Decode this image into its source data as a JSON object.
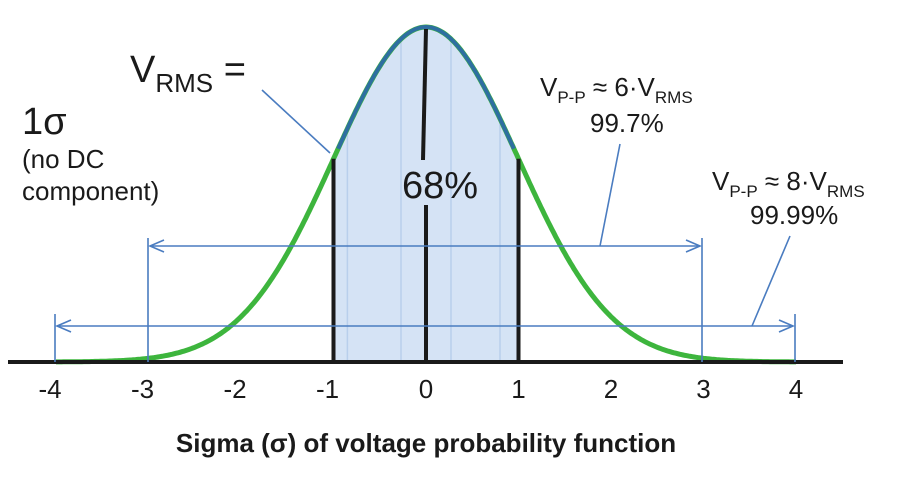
{
  "chart_data": {
    "type": "area",
    "description_curve": "normal",
    "x_ticks": [
      "-4",
      "-3",
      "-2",
      "-1",
      "0",
      "1",
      "2",
      "3",
      "4"
    ],
    "xlim": [
      -4,
      4
    ],
    "shaded_region": [
      -1,
      1
    ],
    "shaded_percent_label": "68%",
    "xlabel": "Sigma (σ) of voltage probability function",
    "colors": {
      "curve": "#3db53d",
      "center_curve": "#2e6fa0",
      "shade": "#d5e3f5",
      "annotation": "#4a7cc0",
      "axis": "#1a1a1a"
    }
  },
  "labels": {
    "vrms_main": "V",
    "vrms_sub": "RMS",
    "vrms_eq": " =",
    "one_sigma": "1σ",
    "no_dc_line1": "(no DC",
    "no_dc_line2": "component)",
    "pp6_v": "V",
    "pp6_sub": "P-P",
    "pp6_rest": " ≈ 6·V",
    "pp6_rms": "RMS",
    "pp6_pct": "99.7%",
    "pp8_v": "V",
    "pp8_sub": "P-P",
    "pp8_rest": " ≈ 8·V",
    "pp8_rms": "RMS",
    "pp8_pct": "99.99%"
  }
}
